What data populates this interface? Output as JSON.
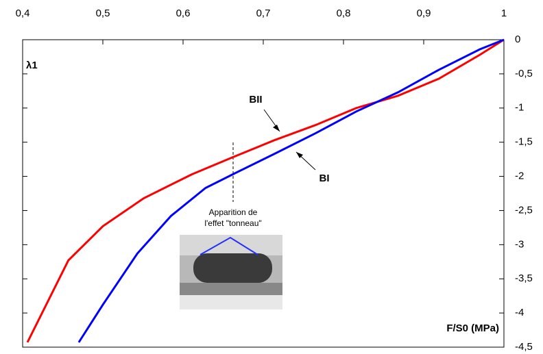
{
  "chart_data": {
    "type": "line",
    "y_axis_label": "λ1",
    "x_axis_label": "F/S0 (MPa)",
    "annotation": [
      "Apparition de",
      "l'effet \"tonneau\""
    ],
    "xlim": [
      0.4,
      1
    ],
    "xticks": [
      {
        "value": 0.4,
        "label": "0,4"
      },
      {
        "value": 0.5,
        "label": "0,5"
      },
      {
        "value": 0.6,
        "label": "0,6"
      },
      {
        "value": 0.7,
        "label": "0,7"
      },
      {
        "value": 0.8,
        "label": "0,8"
      },
      {
        "value": 0.9,
        "label": "0,9"
      },
      1
    ],
    "ylim": [
      -4.5,
      0
    ],
    "yticks": [
      0,
      {
        "value": -0.5,
        "label": "-0,5"
      },
      -1,
      {
        "value": -1.5,
        "label": "-1,5"
      },
      -2,
      {
        "value": -2.5,
        "label": "-2,5"
      },
      -3,
      {
        "value": -3.5,
        "label": "-3,5"
      },
      -4,
      {
        "value": -4.5,
        "label": "-4,5"
      }
    ],
    "series": [
      {
        "name": "BII",
        "color": "#ff0000",
        "x": [
          0.406,
          0.457,
          0.5,
          0.551,
          0.611,
          0.662,
          0.714,
          0.765,
          0.816,
          0.868,
          0.919,
          0.97,
          1
        ],
        "values": [
          -4.43,
          -3.23,
          -2.73,
          -2.32,
          -1.97,
          -1.72,
          -1.47,
          -1.25,
          -1.0,
          -0.82,
          -0.57,
          -0.22,
          0
        ]
      },
      {
        "name": "BI",
        "color": "#0000ff",
        "x": [
          0.47,
          0.5,
          0.543,
          0.585,
          0.628,
          0.662,
          0.714,
          0.765,
          0.816,
          0.868,
          0.919,
          0.97,
          1
        ],
        "values": [
          -4.43,
          -3.88,
          -3.13,
          -2.58,
          -2.17,
          -1.97,
          -1.67,
          -1.37,
          -1.05,
          -0.77,
          -0.44,
          -0.14,
          0
        ]
      }
    ]
  }
}
